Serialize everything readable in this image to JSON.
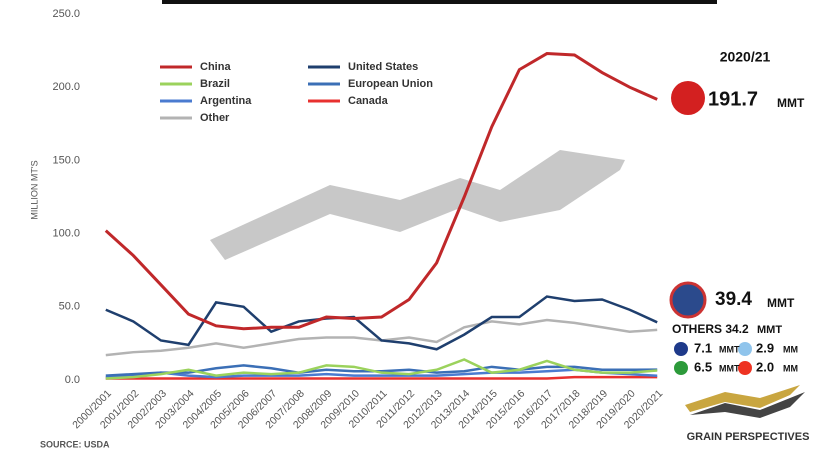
{
  "chart_data": {
    "type": "line",
    "y_label": "MILLION MT'S",
    "source": "SOURCE: USDA",
    "brand": "GRAIN PERSPECTIVES",
    "annotations": [
      "2020/21",
      "191.7",
      "MMT",
      "39.4",
      "MMT",
      "OTHERS 34.2",
      "MMT",
      "7.1",
      "MMT",
      "2.9",
      "MM",
      "6.5",
      "MMT",
      "2.0",
      "MM"
    ],
    "categories": [
      "2000/2001",
      "2001/2002",
      "2002/2003",
      "2003/2004",
      "2004/2005",
      "2005/2006",
      "2006/2007",
      "2007/2008",
      "2008/2009",
      "2009/2010",
      "2010/2011",
      "2011/2012",
      "2012/2013",
      "2013/2014",
      "2014/2015",
      "2015/2016",
      "2016/2017",
      "2017/2018",
      "2018/2019",
      "2019/2020",
      "2020/2021"
    ],
    "series": [
      {
        "name": "China",
        "color": "#c0282a",
        "values": [
          102,
          85,
          65,
          45,
          37,
          35,
          36,
          36,
          43,
          42,
          43,
          55,
          80,
          125,
          173,
          212,
          223,
          222,
          210,
          200,
          191.7
        ]
      },
      {
        "name": "United States",
        "color": "#1f3f6e",
        "values": [
          48,
          40,
          27,
          24,
          53,
          50,
          33,
          40,
          42,
          43,
          27,
          25,
          21,
          31,
          43,
          43,
          57,
          54,
          55,
          48,
          39.4
        ]
      },
      {
        "name": "Brazil",
        "color": "#9bd25c",
        "values": [
          1,
          2,
          4,
          7,
          3,
          5,
          4,
          5,
          10,
          9,
          5,
          4,
          7,
          14,
          5,
          7,
          13,
          7,
          5,
          5,
          6.5
        ]
      },
      {
        "name": "European Union",
        "color": "#3b6fb6",
        "values": [
          3,
          4,
          5,
          5,
          8,
          10,
          8,
          5,
          7,
          6,
          6,
          7,
          5,
          6,
          9,
          7,
          9,
          9,
          7,
          7,
          7.1
        ]
      },
      {
        "name": "Argentina",
        "color": "#4a7bd0",
        "values": [
          2,
          3,
          5,
          3,
          2,
          3,
          3,
          3,
          4,
          3,
          3,
          3,
          3,
          4,
          5,
          5,
          6,
          7,
          5,
          4,
          2.9
        ]
      },
      {
        "name": "Canada",
        "color": "#e8312f",
        "values": [
          1,
          1,
          1,
          1,
          1,
          1,
          1,
          1,
          1,
          1,
          1,
          1,
          1,
          1,
          1,
          1,
          1,
          2,
          2,
          2,
          2.0
        ]
      },
      {
        "name": "Other",
        "color": "#b3b3b3",
        "values": [
          17,
          19,
          20,
          22,
          25,
          22,
          25,
          28,
          29,
          29,
          27,
          29,
          26,
          36,
          40,
          38,
          41,
          39,
          36,
          33,
          34.2
        ]
      }
    ],
    "ylim": [
      0,
      250
    ],
    "yticks": [
      {
        "value": 0,
        "label": "0.0"
      },
      {
        "value": 50,
        "label": "50.0"
      },
      {
        "value": 100,
        "label": "100.0"
      },
      {
        "value": 150,
        "label": "150.0"
      },
      {
        "value": 200,
        "label": "200.0"
      },
      {
        "value": 250,
        "label": "250.0"
      }
    ]
  }
}
